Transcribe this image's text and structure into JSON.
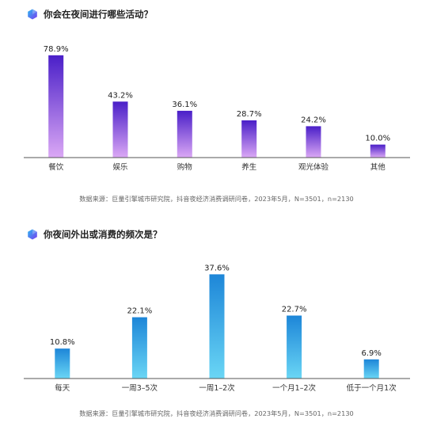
{
  "colors": {
    "chart1_top": "#4a1fc8",
    "chart1_bottom": "#dba8f5",
    "chart2_top": "#1d86d8",
    "chart2_bottom": "#6ad6f5",
    "icon_a": "#7b3cf0",
    "icon_b": "#2bb8f0"
  },
  "icons": {
    "heading_icon": "hexagon-gem-icon"
  },
  "chart_data": [
    {
      "type": "bar",
      "title": "你会在夜间进行哪些活动？",
      "categories": [
        "餐饮",
        "娱乐",
        "购物",
        "养生",
        "观光体验",
        "其他"
      ],
      "values": [
        78.9,
        43.2,
        36.1,
        28.7,
        24.2,
        10.0
      ],
      "value_labels": [
        "78.9%",
        "43.2%",
        "36.1%",
        "28.7%",
        "24.2%",
        "10.0%"
      ],
      "ylim": [
        0,
        80
      ],
      "grid": false,
      "source": "数据来源：巨量引擎城市研究院，抖音夜经济消费调研问卷，2023年5月，N=3501，n=2130"
    },
    {
      "type": "bar",
      "title": "你夜间外出或消费的频次是？",
      "categories": [
        "每天",
        "一周3–5次",
        "一周1–2次",
        "一个月1–2次",
        "低于一个月1次"
      ],
      "values": [
        10.8,
        22.1,
        37.6,
        22.7,
        6.9
      ],
      "value_labels": [
        "10.8%",
        "22.1%",
        "37.6%",
        "22.7%",
        "6.9%"
      ],
      "ylim": [
        0,
        38
      ],
      "grid": false,
      "source": "数据来源：巨量引擎城市研究院，抖音夜经济消费调研问卷，2023年5月，N=3501，n=2130"
    }
  ]
}
